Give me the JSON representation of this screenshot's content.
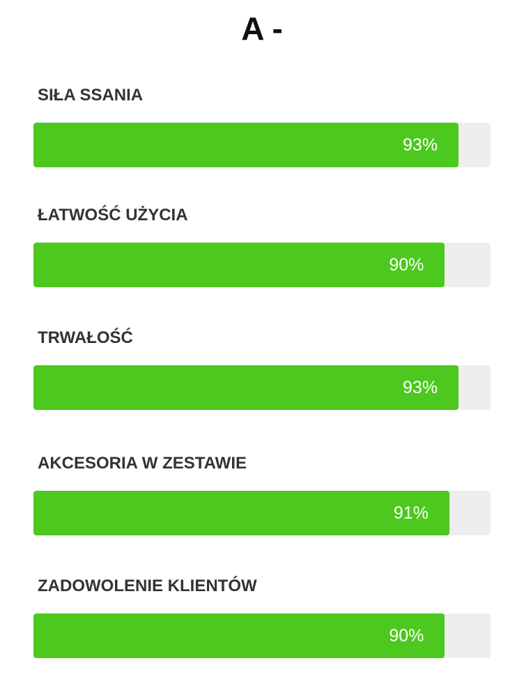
{
  "grade": "A -",
  "colors": {
    "fill": "#4cc81e",
    "track": "#eeeeee",
    "label": "#333333",
    "percent_text": "#ffffff"
  },
  "ratings": [
    {
      "label": "SIŁA SSANIA",
      "percent_text": "93%",
      "value": 93
    },
    {
      "label": "ŁATWOŚĆ UŻYCIA",
      "percent_text": "90%",
      "value": 90
    },
    {
      "label": "TRWAŁOŚĆ",
      "percent_text": "93%",
      "value": 93
    },
    {
      "label": "AKCESORIA W ZESTAWIE",
      "percent_text": "91%",
      "value": 91
    },
    {
      "label": "ZADOWOLENIE KLIENTÓW",
      "percent_text": "90%",
      "value": 90
    }
  ]
}
